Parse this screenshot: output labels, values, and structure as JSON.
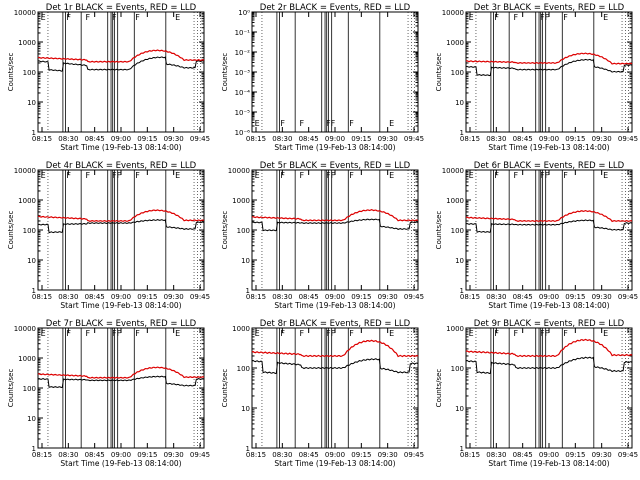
{
  "chart_data": [
    {
      "type": "line",
      "title": "Det 1r  BLACK = Events, RED = LLD",
      "ylabel": "Counts/sec",
      "xlabel": "Start Time (19-Feb-13 08:14:00)",
      "yscale": "log",
      "ylim": [
        1,
        10000
      ],
      "yticks": [
        "1",
        "10",
        "100",
        "1000",
        "10000"
      ],
      "xticks": [
        "08:15",
        "08:30",
        "08:45",
        "09:00",
        "09:15",
        "09:30",
        "09:45"
      ],
      "profile": "full",
      "red_level": [
        300,
        220,
        510,
        250
      ],
      "black_level": [
        230,
        120,
        250,
        230
      ],
      "flag_labels": [
        "E",
        "F",
        "F",
        "F",
        "F",
        "E"
      ]
    },
    {
      "type": "line",
      "title": "Det 2r  BLACK = Events, RED = LLD",
      "ylabel": "Counts/sec",
      "xlabel": "Start Time (19-Feb-13 08:14:00)",
      "yscale": "log",
      "ylim": [
        1e-06,
        1
      ],
      "yticks": [
        "10⁻⁶",
        "10⁻⁵",
        "10⁻⁴",
        "10⁻³",
        "10⁻²",
        "10⁻¹",
        "10⁰"
      ],
      "xticks": [
        "08:15",
        "08:30",
        "08:45",
        "09:00",
        "09:15",
        "09:30",
        "09:45"
      ],
      "profile": "empty",
      "red_level": [],
      "black_level": [],
      "flag_labels": [
        "E",
        "F",
        "F",
        "FF",
        "F",
        "E"
      ]
    },
    {
      "type": "line",
      "title": "Det 3r  BLACK = Events, RED = LLD",
      "ylabel": "Counts/sec",
      "xlabel": "Start Time (19-Feb-13 08:14:00)",
      "yscale": "log",
      "ylim": [
        1,
        10000
      ],
      "yticks": [
        "1",
        "10",
        "100",
        "1000",
        "10000"
      ],
      "xticks": [
        "08:15",
        "08:30",
        "08:45",
        "09:00",
        "09:15",
        "09:30",
        "09:45"
      ],
      "profile": "full",
      "red_level": [
        230,
        200,
        420,
        190
      ],
      "black_level": [
        150,
        120,
        230,
        170
      ],
      "flag_labels": [
        "E",
        "F",
        "F",
        "FF",
        "F",
        "E"
      ]
    },
    {
      "type": "line",
      "title": "Det 4r  BLACK = Events, RED = LLD",
      "ylabel": "Counts/sec",
      "xlabel": "Start Time (19-Feb-13 08:14:00)",
      "yscale": "log",
      "ylim": [
        1,
        10000
      ],
      "yticks": [
        "1",
        "10",
        "100",
        "1000",
        "10000"
      ],
      "xticks": [
        "08:15",
        "08:30",
        "08:45",
        "09:00",
        "09:15",
        "09:30",
        "09:45"
      ],
      "profile": "full",
      "red_level": [
        280,
        200,
        450,
        210
      ],
      "black_level": [
        150,
        170,
        210,
        180
      ],
      "flag_labels": [
        "E",
        "F",
        "F",
        "FF",
        "F",
        "E"
      ]
    },
    {
      "type": "line",
      "title": "Det 5r  BLACK = Events, RED = LLD",
      "ylabel": "Counts/sec",
      "xlabel": "Start Time (19-Feb-13 08:14:00)",
      "yscale": "log",
      "ylim": [
        1,
        10000
      ],
      "yticks": [
        "1",
        "10",
        "100",
        "1000",
        "10000"
      ],
      "xticks": [
        "08:15",
        "08:30",
        "08:45",
        "09:00",
        "09:15",
        "09:30",
        "09:45"
      ],
      "profile": "full",
      "red_level": [
        270,
        210,
        460,
        210
      ],
      "black_level": [
        180,
        170,
        220,
        180
      ],
      "flag_labels": [
        "E",
        "F",
        "F",
        "FF",
        "F",
        "E"
      ]
    },
    {
      "type": "line",
      "title": "Det 6r  BLACK = Events, RED = LLD",
      "ylabel": "Counts/sec",
      "xlabel": "Start Time (19-Feb-13 08:14:00)",
      "yscale": "log",
      "ylim": [
        1,
        10000
      ],
      "yticks": [
        "1",
        "10",
        "100",
        "1000",
        "10000"
      ],
      "xticks": [
        "08:15",
        "08:30",
        "08:45",
        "09:00",
        "09:15",
        "09:30",
        "09:45"
      ],
      "profile": "full",
      "red_level": [
        260,
        200,
        430,
        200
      ],
      "black_level": [
        160,
        150,
        200,
        170
      ],
      "flag_labels": [
        "E",
        "F",
        "F",
        "FF",
        "F",
        "E"
      ]
    },
    {
      "type": "line",
      "title": "Det 7r  BLACK = Events, RED = LLD",
      "ylabel": "Counts/sec",
      "xlabel": "Start Time (19-Feb-13 08:14:00)",
      "yscale": "log",
      "ylim": [
        1,
        10000
      ],
      "yticks": [
        "1",
        "10",
        "100",
        "1000",
        "10000"
      ],
      "xticks": [
        "08:15",
        "08:30",
        "08:45",
        "09:00",
        "09:15",
        "09:30",
        "09:45"
      ],
      "profile": "full",
      "red_level": [
        290,
        220,
        480,
        230
      ],
      "black_level": [
        200,
        180,
        230,
        200
      ],
      "flag_labels": [
        "E",
        "F",
        "F",
        "FF",
        "F",
        "E"
      ]
    },
    {
      "type": "line",
      "title": "Det 8r  BLACK = Events, RED = LLD",
      "ylabel": "Counts/sec",
      "xlabel": "Start Time (19-Feb-13 08:14:00)",
      "yscale": "log",
      "ylim": [
        1,
        1000
      ],
      "yticks": [
        "1",
        "10",
        "100",
        "1000"
      ],
      "xticks": [
        "08:15",
        "08:30",
        "08:45",
        "09:00",
        "09:15",
        "09:30",
        "09:45"
      ],
      "profile": "full",
      "red_level": [
        250,
        200,
        480,
        200
      ],
      "black_level": [
        150,
        100,
        150,
        130
      ],
      "flag_labels": [
        "E",
        "F",
        "F",
        "FF",
        "F",
        "E"
      ]
    },
    {
      "type": "line",
      "title": "Det 9r  BLACK = Events, RED = LLD",
      "ylabel": "Counts/sec",
      "xlabel": "Start Time (19-Feb-13 08:14:00)",
      "yscale": "log",
      "ylim": [
        1,
        1000
      ],
      "yticks": [
        "1",
        "10",
        "100",
        "1000"
      ],
      "xticks": [
        "08:15",
        "08:30",
        "08:45",
        "09:00",
        "09:15",
        "09:30",
        "09:45"
      ],
      "profile": "full",
      "red_level": [
        260,
        200,
        500,
        210
      ],
      "black_level": [
        150,
        100,
        160,
        140
      ],
      "flag_labels": [
        "E",
        "F",
        "F",
        "FF",
        "F",
        "E"
      ]
    }
  ],
  "colors": {
    "events": "#000000",
    "lld": "#dd0000",
    "background": "#ffffff"
  }
}
